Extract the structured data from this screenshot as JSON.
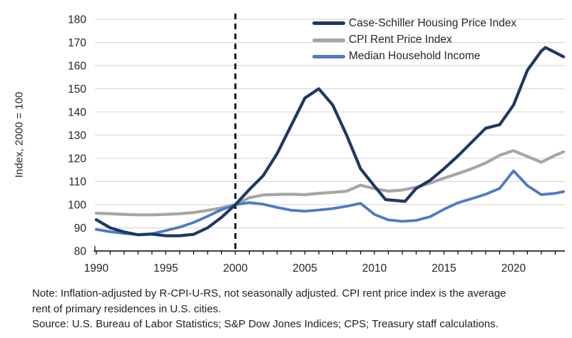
{
  "chart_data": {
    "type": "line",
    "title": "",
    "xlabel": "",
    "ylabel": "Index, 2000 = 100",
    "xlim": [
      1989.9,
      2023.7
    ],
    "ylim": [
      80,
      180
    ],
    "y_ticks": [
      80,
      90,
      100,
      110,
      120,
      130,
      140,
      150,
      160,
      170,
      180
    ],
    "x_tick_years": [
      1990,
      1995,
      2000,
      2005,
      2010,
      2015,
      2020
    ],
    "minor_ticks": "yearly 1990-2023",
    "grid": "horizontal",
    "grid_color": "#D9D9D9",
    "axis_color": "#000000",
    "label_color": "#262626",
    "legend_position": "top-right-inside",
    "reference_line_x": 2000,
    "reference_line_style": "dashed black vertical",
    "series": [
      {
        "name": "Case-Schiller Housing Price Index",
        "color": "#1F3864",
        "width": 4.2,
        "points": [
          [
            1990,
            93.5
          ],
          [
            1991,
            90
          ],
          [
            1992,
            88.2
          ],
          [
            1993,
            87
          ],
          [
            1994,
            87.3
          ],
          [
            1995,
            86.6
          ],
          [
            1996,
            86.6
          ],
          [
            1997,
            87.2
          ],
          [
            1998,
            90
          ],
          [
            1999,
            94.5
          ],
          [
            2000,
            100
          ],
          [
            2001,
            106.5
          ],
          [
            2002,
            112.5
          ],
          [
            2003,
            122
          ],
          [
            2004,
            134
          ],
          [
            2005,
            146
          ],
          [
            2006,
            150
          ],
          [
            2007,
            143
          ],
          [
            2008,
            130
          ],
          [
            2009,
            115.5
          ],
          [
            2010,
            108
          ],
          [
            2010.8,
            102.2
          ],
          [
            2012.2,
            101.4
          ],
          [
            2013,
            107
          ],
          [
            2014,
            110.5
          ],
          [
            2015,
            115.5
          ],
          [
            2016,
            121
          ],
          [
            2017,
            127
          ],
          [
            2018,
            133
          ],
          [
            2019,
            134.5
          ],
          [
            2020,
            143
          ],
          [
            2021,
            158
          ],
          [
            2022,
            166.3
          ],
          [
            2022.3,
            167.8
          ],
          [
            2023.6,
            163.8
          ]
        ]
      },
      {
        "name": "CPI Rent Price Index",
        "color": "#A6A6A6",
        "width": 4.2,
        "points": [
          [
            1990,
            96.3
          ],
          [
            1991,
            96.1
          ],
          [
            1992,
            95.8
          ],
          [
            1993,
            95.6
          ],
          [
            1994,
            95.6
          ],
          [
            1995,
            95.8
          ],
          [
            1996,
            96.1
          ],
          [
            1997,
            96.6
          ],
          [
            1998,
            97.5
          ],
          [
            1999,
            98.6
          ],
          [
            2000,
            100
          ],
          [
            2001,
            103
          ],
          [
            2002,
            104.2
          ],
          [
            2003,
            104.4
          ],
          [
            2004,
            104.5
          ],
          [
            2005,
            104.3
          ],
          [
            2006,
            104.9
          ],
          [
            2007,
            105.3
          ],
          [
            2008,
            105.8
          ],
          [
            2009,
            108.4
          ],
          [
            2010,
            106.9
          ],
          [
            2011,
            105.8
          ],
          [
            2012,
            106.3
          ],
          [
            2013,
            107.5
          ],
          [
            2014,
            109.3
          ],
          [
            2015,
            111.4
          ],
          [
            2016,
            113.4
          ],
          [
            2017,
            115.5
          ],
          [
            2018,
            118
          ],
          [
            2019,
            121.3
          ],
          [
            2020,
            123.3
          ],
          [
            2021,
            120.8
          ],
          [
            2022,
            118.3
          ],
          [
            2023,
            121.3
          ],
          [
            2023.6,
            122.8
          ]
        ]
      },
      {
        "name": "Median Household Income",
        "color": "#4E7AC7",
        "width": 3.8,
        "points": [
          [
            1990,
            89.3
          ],
          [
            1991,
            88.3
          ],
          [
            1992,
            87.6
          ],
          [
            1993,
            87.1
          ],
          [
            1994,
            87.4
          ],
          [
            1995,
            88.8
          ],
          [
            1996,
            90.3
          ],
          [
            1997,
            92.3
          ],
          [
            1998,
            95
          ],
          [
            1999,
            97.8
          ],
          [
            2000,
            100
          ],
          [
            2001,
            100.9
          ],
          [
            2002,
            100.2
          ],
          [
            2003,
            98.8
          ],
          [
            2004,
            97.6
          ],
          [
            2005,
            97.2
          ],
          [
            2006,
            97.7
          ],
          [
            2007,
            98.3
          ],
          [
            2008,
            99.3
          ],
          [
            2009,
            100.6
          ],
          [
            2010,
            95.8
          ],
          [
            2011,
            93.4
          ],
          [
            2012,
            92.8
          ],
          [
            2013,
            93.2
          ],
          [
            2014,
            94.8
          ],
          [
            2015,
            98
          ],
          [
            2016,
            100.8
          ],
          [
            2017,
            102.6
          ],
          [
            2018,
            104.5
          ],
          [
            2019,
            107
          ],
          [
            2020,
            114.6
          ],
          [
            2021,
            108.2
          ],
          [
            2022,
            104.3
          ],
          [
            2023,
            104.9
          ],
          [
            2023.6,
            105.6
          ]
        ]
      }
    ]
  },
  "notes": {
    "line1": "Note: Inflation-adjusted by R-CPI-U-RS, not seasonally adjusted. CPI rent price index is the average",
    "line2": "rent of primary residences in U.S. cities.",
    "source": "Source: U.S. Bureau of Labor Statistics; S&P Dow Jones Indices; CPS; Treasury staff calculations."
  }
}
